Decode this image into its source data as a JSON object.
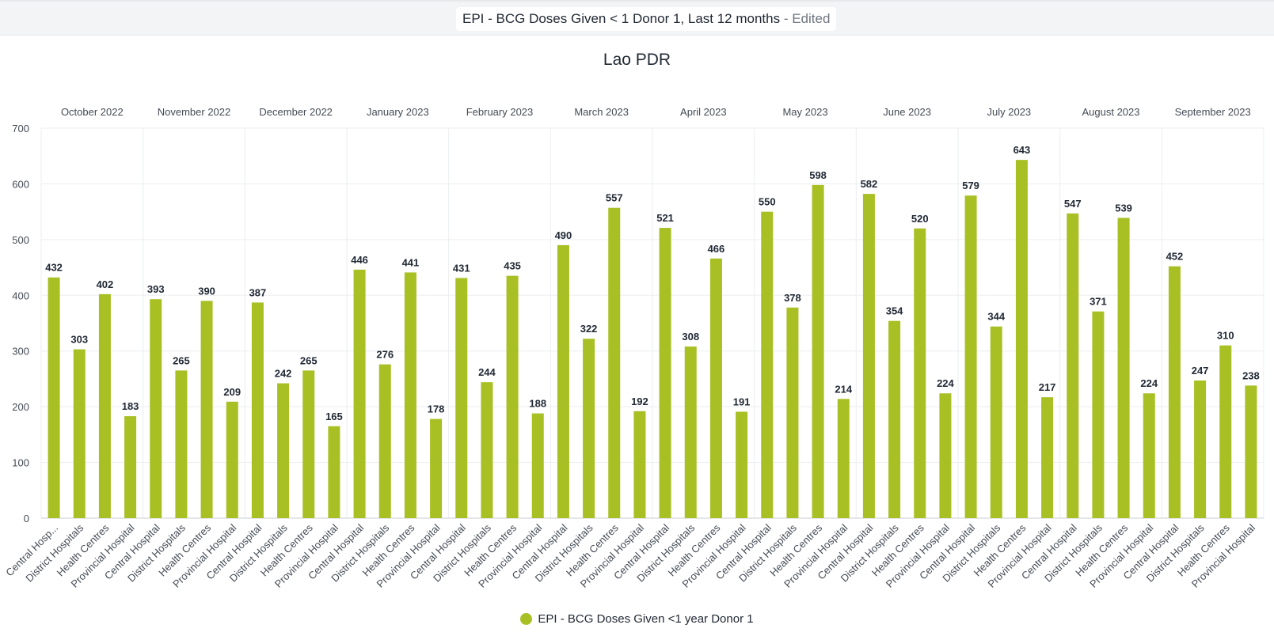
{
  "header": {
    "title": "EPI - BCG Doses Given < 1 Donor 1, Last 12 months",
    "edited_suffix": " - Edited"
  },
  "colors": {
    "bar": "#a8c023",
    "grid": "#ebedf0",
    "axis_text": "#444b55",
    "label_text": "#212934"
  },
  "chart_data": {
    "type": "bar",
    "title": "Lao PDR",
    "xlabel": "",
    "ylabel": "",
    "ylim": [
      0,
      700
    ],
    "yticks": [
      0,
      100,
      200,
      300,
      400,
      500,
      600,
      700
    ],
    "grid": true,
    "legend_position": "bottom",
    "groups": [
      "October 2022",
      "November 2022",
      "December 2022",
      "January 2023",
      "February 2023",
      "March 2023",
      "April 2023",
      "May 2023",
      "June 2023",
      "July 2023",
      "August 2023",
      "September 2023"
    ],
    "categories": [
      "Central Hospital",
      "District Hospitals",
      "Health Centres",
      "Provincial Hospital"
    ],
    "first_category_label": "Central Hosp...",
    "series": [
      {
        "name": "EPI - BCG Doses Given <1 year Donor 1",
        "values": [
          [
            432,
            303,
            402,
            183
          ],
          [
            393,
            265,
            390,
            209
          ],
          [
            387,
            242,
            265,
            165
          ],
          [
            446,
            276,
            441,
            178
          ],
          [
            431,
            244,
            435,
            188
          ],
          [
            490,
            322,
            557,
            192
          ],
          [
            521,
            308,
            466,
            191
          ],
          [
            550,
            378,
            598,
            214
          ],
          [
            582,
            354,
            520,
            224
          ],
          [
            579,
            344,
            643,
            217
          ],
          [
            547,
            371,
            539,
            224
          ],
          [
            452,
            247,
            310,
            238
          ]
        ]
      }
    ]
  }
}
